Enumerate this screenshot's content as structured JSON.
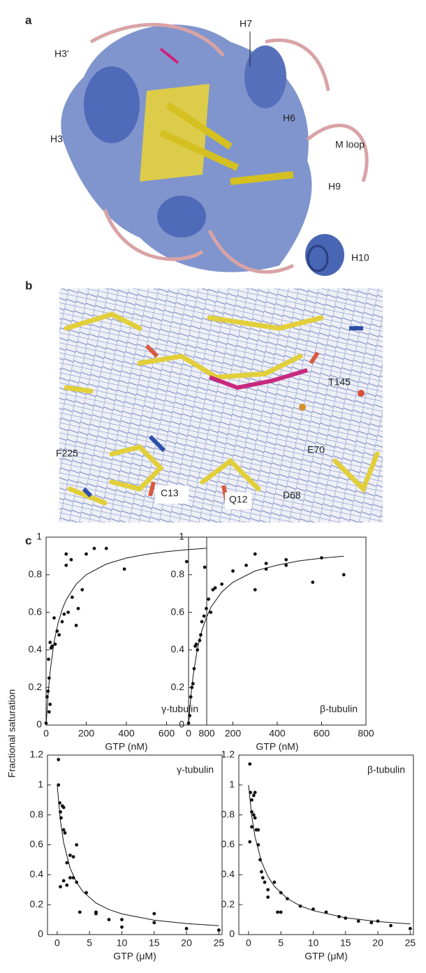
{
  "panels": {
    "a": {
      "label": "a",
      "annotations": [
        "H7",
        "H3'",
        "H6",
        "H3",
        "M loop",
        "H9",
        "H10"
      ]
    },
    "b": {
      "label": "b",
      "annotations": [
        "T145",
        "F225",
        "E70",
        "C13",
        "Q12",
        "D68"
      ]
    },
    "c": {
      "label": "c",
      "y_label": "Fractional saturation"
    }
  },
  "chart_data": [
    {
      "type": "scatter",
      "xlabel": "GTP (nM)",
      "annotation": "γ-tubulin",
      "xlim": [
        0,
        800
      ],
      "ylim": [
        0,
        1
      ],
      "xticks": [
        0,
        200,
        400,
        600,
        800
      ],
      "yticks": [
        0,
        0.2,
        0.4,
        0.6,
        0.8,
        1
      ],
      "series": [
        {
          "type": "scatter",
          "color": "#111",
          "x": [
            0,
            5,
            10,
            12,
            15,
            20,
            25,
            30,
            40,
            45,
            55,
            65,
            80,
            90,
            100,
            100,
            110,
            125,
            130,
            150,
            160,
            180,
            200,
            240,
            300,
            390,
            700,
            790,
            15,
            20
          ],
          "values": [
            0.01,
            0.15,
            0.18,
            0.35,
            0.25,
            0.44,
            0.41,
            0.42,
            0.57,
            0.43,
            0.5,
            0.48,
            0.55,
            0.59,
            0.85,
            0.91,
            0.6,
            0.88,
            0.68,
            0.53,
            0.62,
            0.72,
            0.91,
            0.94,
            0.94,
            0.83,
            0.87,
            0.84,
            0.07,
            0.11
          ]
        },
        {
          "type": "line",
          "color": "#111",
          "x": [
            0,
            10,
            20,
            40,
            60,
            80,
            100,
            150,
            200,
            300,
            400,
            500,
            600,
            700,
            800
          ],
          "values": [
            0,
            0.167,
            0.286,
            0.444,
            0.545,
            0.615,
            0.667,
            0.75,
            0.8,
            0.857,
            0.889,
            0.909,
            0.923,
            0.933,
            0.941
          ]
        }
      ]
    },
    {
      "type": "scatter",
      "xlabel": "GTP (nM)",
      "annotation": "β-tubulin",
      "xlim": [
        0,
        800
      ],
      "ylim": [
        0,
        1
      ],
      "xticks": [
        0,
        200,
        400,
        600,
        800
      ],
      "yticks": [
        0,
        0.2,
        0.4,
        0.6,
        0.8,
        1
      ],
      "series": [
        {
          "type": "scatter",
          "color": "#111",
          "x": [
            0,
            5,
            10,
            15,
            20,
            25,
            30,
            35,
            40,
            50,
            55,
            60,
            70,
            80,
            90,
            100,
            110,
            120,
            150,
            200,
            260,
            300,
            300,
            350,
            350,
            440,
            440,
            560,
            600,
            700
          ],
          "values": [
            0.01,
            0.05,
            0.15,
            0.2,
            0.22,
            0.3,
            0.42,
            0.43,
            0.4,
            0.45,
            0.48,
            0.55,
            0.58,
            0.62,
            0.67,
            0.6,
            0.72,
            0.73,
            0.75,
            0.82,
            0.85,
            0.91,
            0.72,
            0.83,
            0.86,
            0.85,
            0.88,
            0.76,
            0.89,
            0.8
          ]
        },
        {
          "type": "line",
          "color": "#111",
          "x": [
            0,
            10,
            20,
            40,
            60,
            80,
            100,
            150,
            200,
            300,
            400,
            500,
            600,
            700
          ],
          "values": [
            0,
            0.149,
            0.259,
            0.408,
            0.503,
            0.57,
            0.626,
            0.708,
            0.76,
            0.82,
            0.851,
            0.874,
            0.888,
            0.899
          ]
        }
      ]
    },
    {
      "type": "scatter",
      "xlabel": "GTP (μM)",
      "annotation": "γ-tubulin",
      "xlim": [
        -1.5,
        25.5
      ],
      "ylim": [
        0,
        1.2
      ],
      "xticks": [
        0,
        5,
        10,
        15,
        20,
        25
      ],
      "yticks": [
        0,
        0.2,
        0.4,
        0.6,
        0.8,
        1,
        1.2
      ],
      "series": [
        {
          "type": "scatter",
          "color": "#111",
          "x": [
            0.2,
            0.2,
            0.4,
            0.5,
            0.6,
            0.8,
            1,
            1,
            1.2,
            1.5,
            1.5,
            2,
            2,
            2.5,
            2.5,
            3,
            3,
            3.5,
            4.5,
            6,
            6,
            8,
            10,
            10,
            15,
            15,
            20,
            25,
            1,
            0.5
          ],
          "values": [
            1.17,
            1,
            0.88,
            0.82,
            0.78,
            0.86,
            0.85,
            0.7,
            0.68,
            0.48,
            0.33,
            0.38,
            0.53,
            0.52,
            0.38,
            0.35,
            0.6,
            0.15,
            0.28,
            0.15,
            0.14,
            0.1,
            0.05,
            0.1,
            0.14,
            0.08,
            0.04,
            0.03,
            0.36,
            0.32
          ]
        },
        {
          "type": "line",
          "color": "#111",
          "x": [
            0,
            0.5,
            1,
            2,
            3,
            4,
            6,
            8,
            10,
            15,
            20,
            25
          ],
          "values": [
            1,
            0.762,
            0.615,
            0.444,
            0.348,
            0.286,
            0.211,
            0.167,
            0.138,
            0.096,
            0.074,
            0.06
          ]
        }
      ]
    },
    {
      "type": "scatter",
      "xlabel": "GTP (μM)",
      "annotation": "β-tubulin",
      "xlim": [
        -1.5,
        25.5
      ],
      "ylim": [
        0,
        1.2
      ],
      "xticks": [
        0,
        5,
        10,
        15,
        20,
        25
      ],
      "yticks": [
        0,
        0.2,
        0.4,
        0.6,
        0.8,
        1,
        1.2
      ],
      "series": [
        {
          "type": "scatter",
          "color": "#111",
          "x": [
            0.2,
            0.3,
            0.5,
            0.5,
            0.8,
            0.8,
            1,
            1,
            1.2,
            1.5,
            1.5,
            1.8,
            2,
            2.2,
            2.5,
            3,
            3,
            4,
            4.5,
            5,
            5,
            6,
            8,
            10,
            12,
            14,
            15,
            17,
            19,
            20,
            22,
            25,
            0.2,
            0.5
          ],
          "values": [
            1.14,
            0.95,
            0.9,
            0.82,
            0.93,
            0.8,
            0.95,
            0.78,
            0.7,
            0.7,
            0.6,
            0.5,
            0.42,
            0.38,
            0.35,
            0.3,
            0.25,
            0.35,
            0.15,
            0.15,
            0.28,
            0.24,
            0.19,
            0.17,
            0.15,
            0.12,
            0.11,
            0.09,
            0.08,
            0.09,
            0.06,
            0.04,
            0.62,
            0.72
          ]
        },
        {
          "type": "line",
          "color": "#111",
          "x": [
            0,
            0.5,
            1,
            2,
            3,
            4,
            6,
            8,
            10,
            15,
            20,
            25
          ],
          "values": [
            1,
            0.792,
            0.655,
            0.487,
            0.388,
            0.322,
            0.241,
            0.192,
            0.16,
            0.112,
            0.087,
            0.071
          ]
        }
      ]
    }
  ]
}
